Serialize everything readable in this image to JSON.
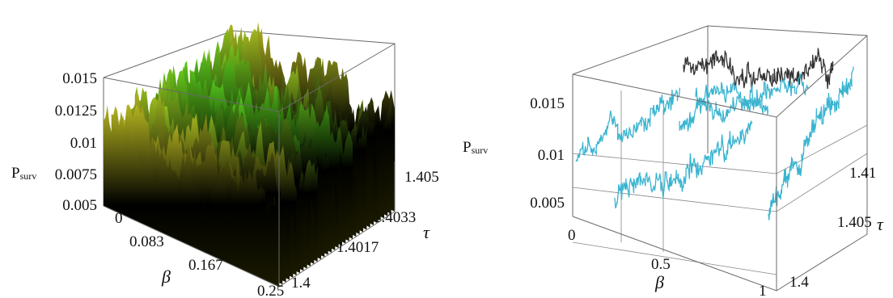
{
  "chart_data": [
    {
      "type": "surface3d",
      "title": "",
      "zlabel": "P_surv",
      "xlabel": "β",
      "ylabel": "τ",
      "x_ticks": [
        "0",
        "0.083",
        "0.167",
        "0.25"
      ],
      "y_ticks": [
        "1.4",
        "1.4017",
        "1.4033",
        "1.405"
      ],
      "z_ticks": [
        "0.005",
        "0.0075",
        "0.01",
        "0.0125",
        "0.015"
      ],
      "xlim": [
        0,
        0.25
      ],
      "ylim": [
        1.4,
        1.405
      ],
      "zlim": [
        0.005,
        0.015
      ],
      "colors": {
        "low": "#1a1a00",
        "mid": "#b5b520",
        "high": "#3fcf1a"
      }
    },
    {
      "type": "line3d",
      "title": "",
      "zlabel": "P_surv",
      "xlabel": "β",
      "ylabel": "τ",
      "x_ticks": [
        "0",
        "0.5",
        "1"
      ],
      "y_ticks": [
        "1.4",
        "1.405",
        "1.41"
      ],
      "z_ticks": [
        "0.005",
        "0.01",
        "0.015"
      ],
      "xlim": [
        0,
        1
      ],
      "ylim": [
        1.4,
        1.41
      ],
      "zlim": [
        0.005,
        0.015
      ],
      "series": [
        {
          "color": "#3ab4d0"
        },
        {
          "color": "#333333"
        }
      ]
    }
  ],
  "labels": {
    "p": "P",
    "p_sub": "surv",
    "beta": "β",
    "tau": "τ"
  }
}
